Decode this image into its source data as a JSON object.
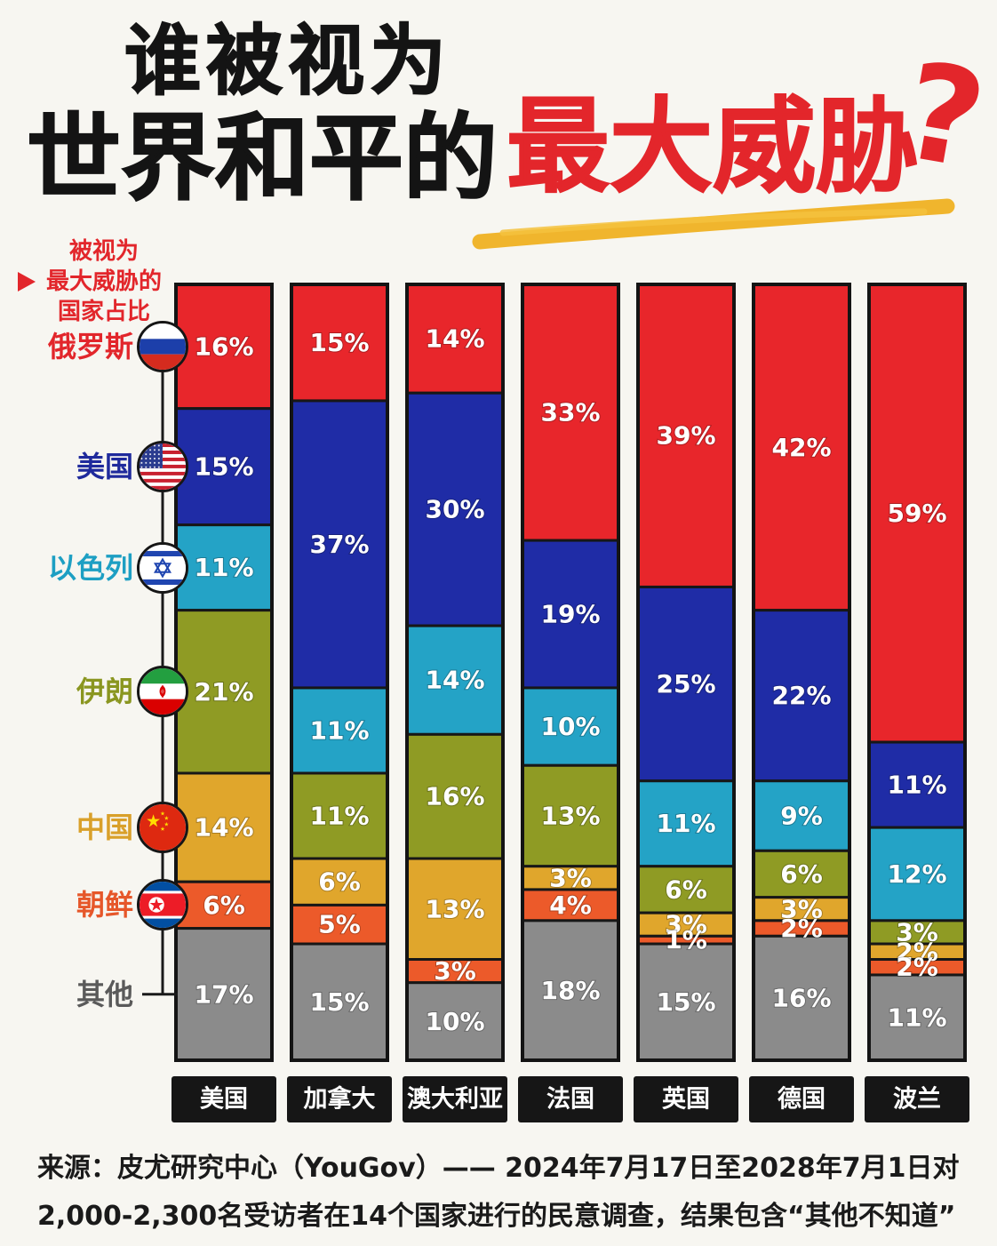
{
  "chart_data": {
    "type": "bar",
    "stacked": true,
    "title": {
      "line1": "谁被视为",
      "line2": "世界和平的",
      "highlight": "最大威胁",
      "mark": "?"
    },
    "legend_title": [
      "被视为",
      "最大威胁的",
      "国家占比"
    ],
    "legend_placement": "left",
    "categories": [
      "美国",
      "加拿大",
      "澳大利亚",
      "法国",
      "英国",
      "德国",
      "波兰"
    ],
    "value_suffix": "%",
    "ylim": [
      0,
      100
    ],
    "grid": false,
    "series": [
      {
        "name": "俄罗斯",
        "values": [
          16,
          15,
          14,
          33,
          39,
          42,
          59
        ],
        "color": "#e8262b",
        "text_color": "#e2262b",
        "flag": "russia-flag-icon"
      },
      {
        "name": "美国",
        "values": [
          15,
          37,
          30,
          19,
          25,
          22,
          11
        ],
        "color": "#1f2ca6",
        "text_color": "#1f2a9c",
        "flag": "usa-flag-icon"
      },
      {
        "name": "以色列",
        "values": [
          11,
          11,
          14,
          10,
          11,
          9,
          12
        ],
        "color": "#24a3c6",
        "text_color": "#1d9fc3",
        "flag": "israel-flag-icon"
      },
      {
        "name": "伊朗",
        "values": [
          21,
          11,
          16,
          13,
          6,
          6,
          3
        ],
        "color": "#8f9b24",
        "text_color": "#8a9620",
        "flag": "iran-flag-icon"
      },
      {
        "name": "中国",
        "values": [
          14,
          6,
          13,
          3,
          3,
          3,
          2
        ],
        "color": "#e0a62c",
        "text_color": "#d9a02a",
        "flag": "china-flag-icon"
      },
      {
        "name": "朝鲜",
        "values": [
          6,
          5,
          3,
          4,
          1,
          2,
          2
        ],
        "color": "#ec5a2a",
        "text_color": "#e6572a",
        "flag": "north-korea-flag-icon"
      },
      {
        "name": "其他",
        "values": [
          17,
          15,
          10,
          18,
          15,
          16,
          11
        ],
        "color": "#8b8b8b",
        "text_color": "#5a5a5a"
      }
    ]
  },
  "source": {
    "line1": "来源：皮尤研究中心（YouGov）—— 2024年7月17日至2028年7月1日对",
    "line2": "2,000-2,300名受访者在14个国家进行的民意调查，结果包含“其他不知道”"
  }
}
